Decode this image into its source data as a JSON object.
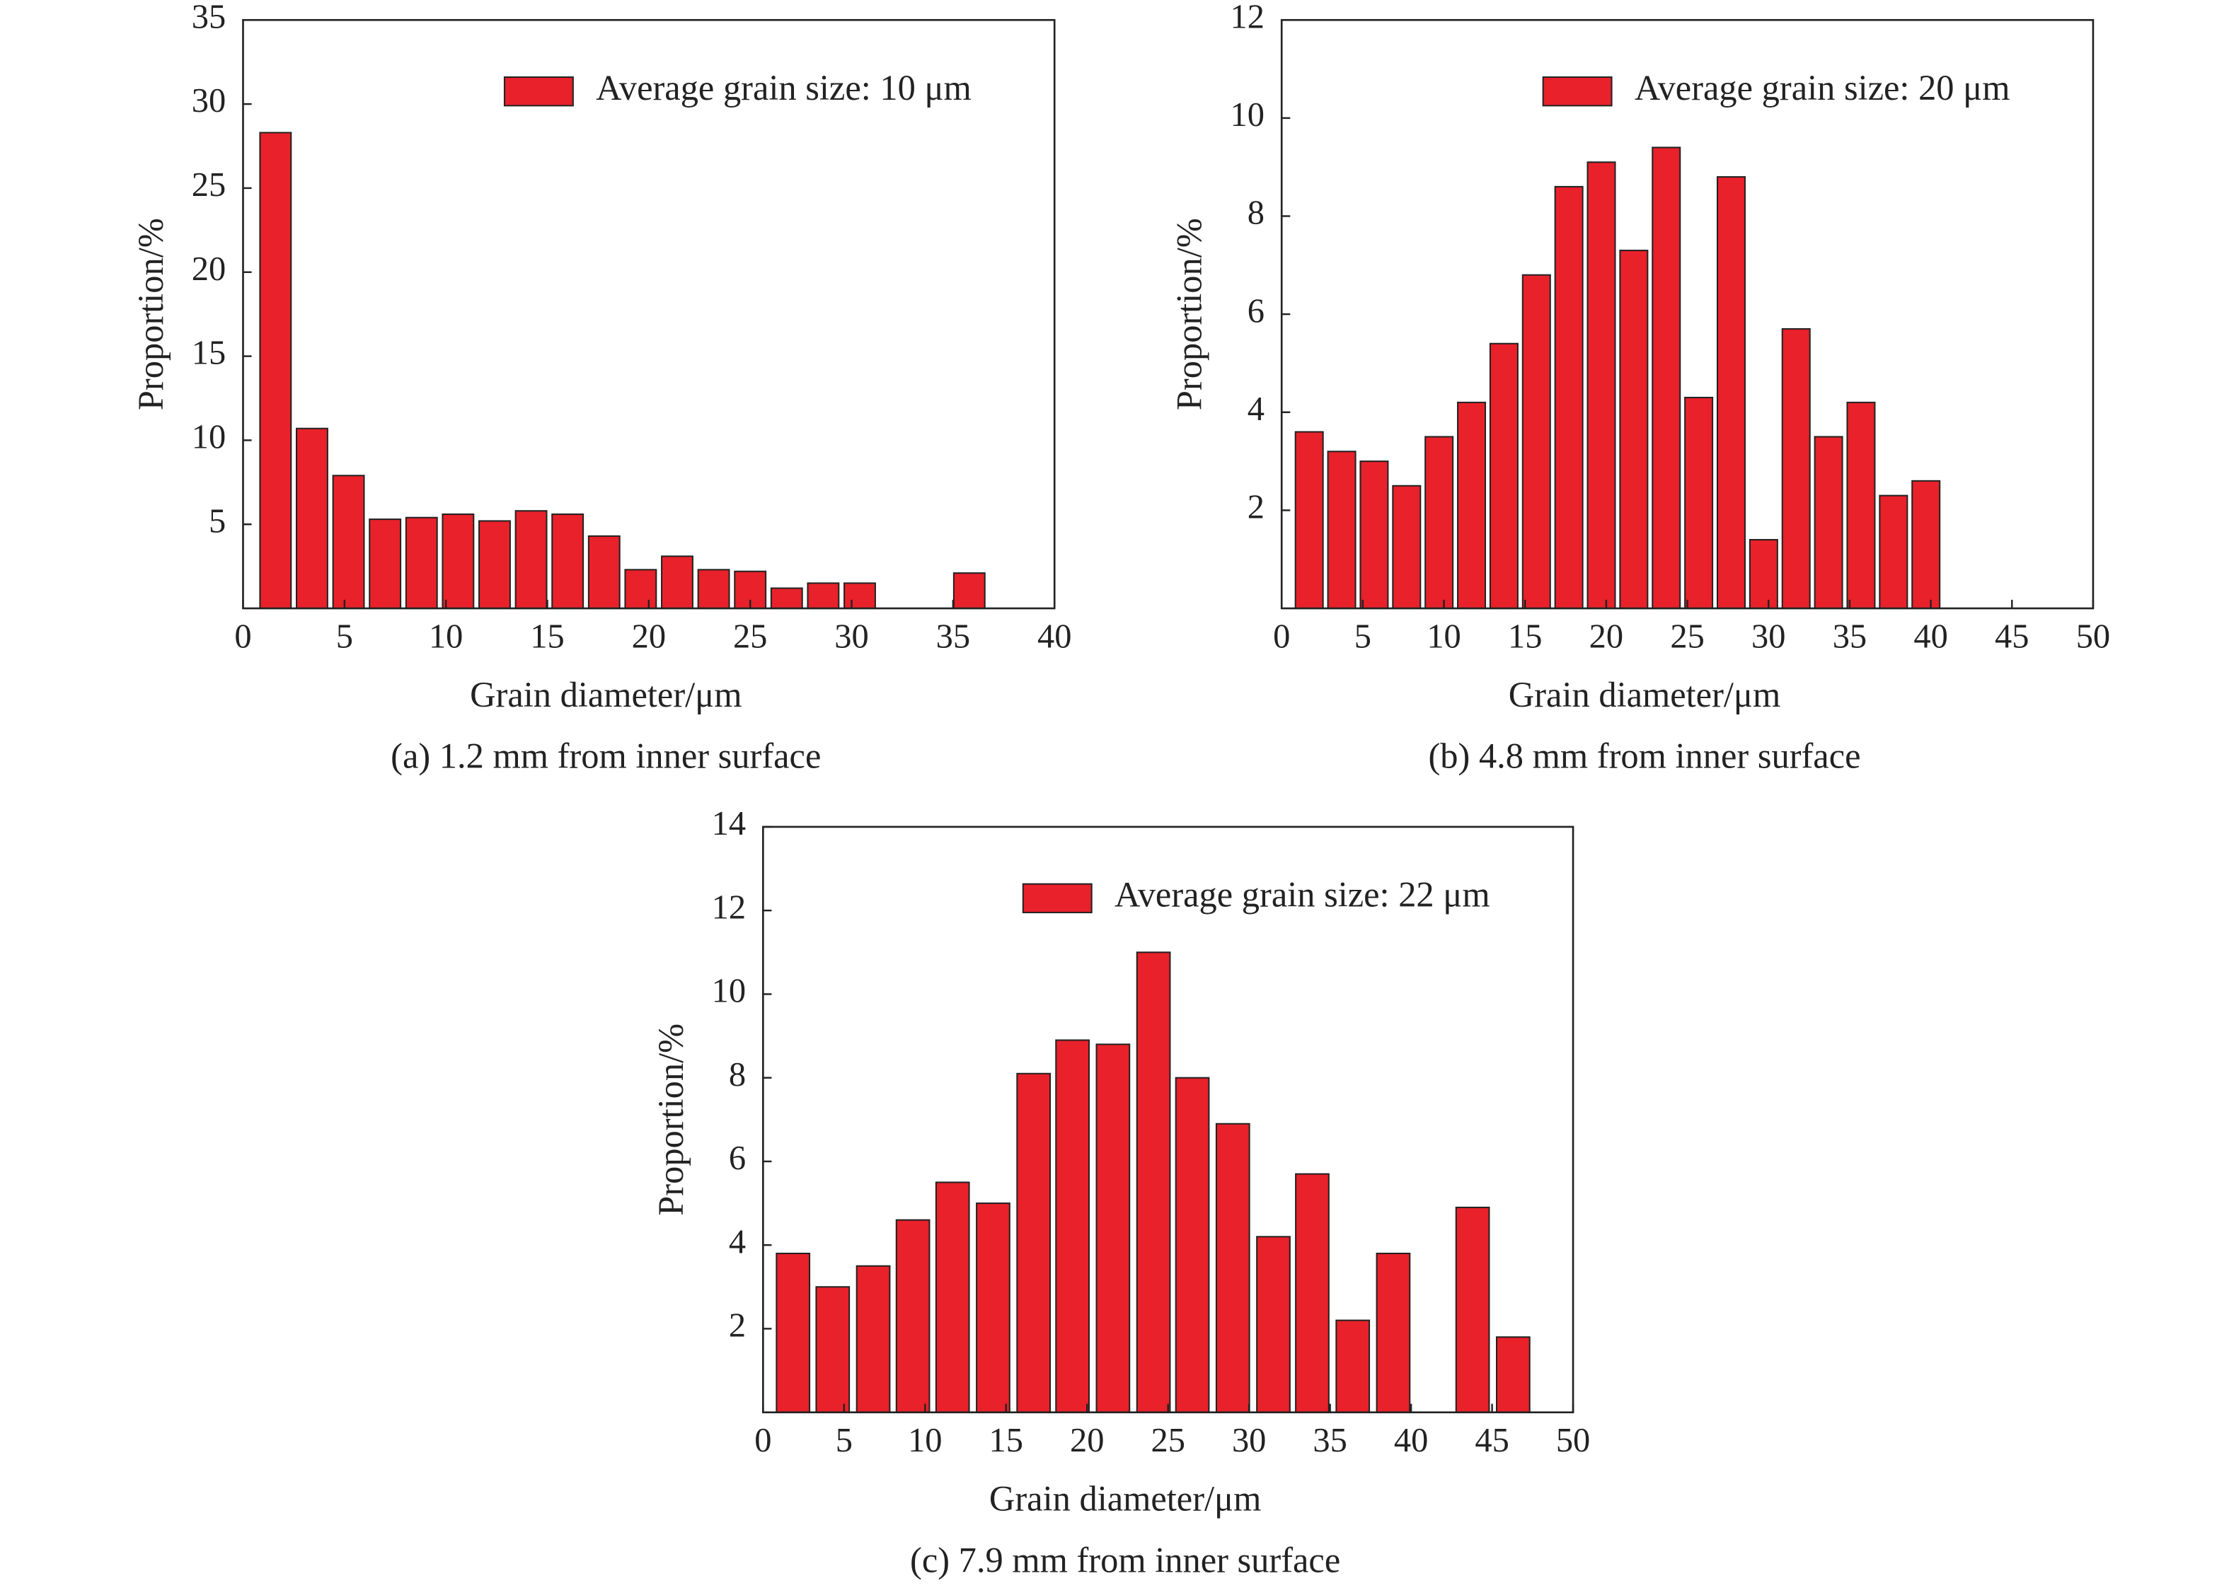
{
  "chart_data": [
    {
      "type": "bar",
      "caption": "(a) 1.2 mm from inner surface",
      "xlabel": "Grain diameter/μm",
      "ylabel": "Proportion/%",
      "series": [
        {
          "name": "Average grain size: 10 μm",
          "color": "#e8212a",
          "x": [
            1.6,
            3.4,
            5.2,
            7.0,
            8.8,
            10.6,
            12.4,
            14.2,
            16.0,
            17.8,
            19.6,
            21.4,
            23.2,
            25.0,
            26.8,
            28.6,
            30.4,
            35.8
          ],
          "values": [
            28.3,
            10.7,
            7.9,
            5.3,
            5.4,
            5.6,
            5.2,
            5.8,
            5.6,
            4.3,
            2.3,
            3.1,
            2.3,
            2.2,
            1.2,
            1.5,
            1.5,
            2.1
          ]
        }
      ],
      "xlim": [
        0,
        40
      ],
      "xticks": [
        0,
        5,
        10,
        15,
        20,
        25,
        30,
        35,
        40
      ],
      "ylim": [
        0,
        35
      ],
      "yticks": [
        5,
        10,
        15,
        20,
        25,
        30,
        35
      ],
      "legend": "upper right"
    },
    {
      "type": "bar",
      "caption": "(b) 4.8 mm from inner surface",
      "xlabel": "Grain diameter/μm",
      "ylabel": "Proportion/%",
      "series": [
        {
          "name": "Average grain size: 20 μm",
          "color": "#e8212a",
          "x": [
            1.7,
            3.7,
            5.7,
            7.7,
            9.7,
            11.7,
            13.7,
            15.7,
            17.7,
            19.7,
            21.7,
            23.7,
            25.7,
            27.7,
            29.7,
            31.7,
            33.7,
            35.7,
            37.7,
            39.7
          ],
          "values": [
            3.6,
            3.2,
            3.0,
            2.5,
            3.5,
            4.2,
            5.4,
            6.8,
            8.6,
            9.1,
            7.3,
            9.4,
            4.3,
            8.8,
            1.4,
            5.7,
            3.5,
            4.2,
            2.3,
            2.6
          ]
        }
      ],
      "xlim": [
        0,
        50
      ],
      "xticks": [
        0,
        5,
        10,
        15,
        20,
        25,
        30,
        35,
        40,
        45,
        50
      ],
      "ylim": [
        0,
        12
      ],
      "yticks": [
        2,
        4,
        6,
        8,
        10,
        12
      ],
      "legend": "upper right"
    },
    {
      "type": "bar",
      "caption": "(c) 7.9 mm from inner surface",
      "xlabel": "Grain diameter/μm",
      "ylabel": "Proportion/%",
      "series": [
        {
          "name": "Average grain size: 22 μm",
          "color": "#e8212a",
          "x": [
            1.85,
            4.3,
            6.8,
            9.25,
            11.7,
            14.2,
            16.7,
            19.1,
            21.6,
            24.1,
            26.5,
            29.0,
            31.5,
            33.9,
            36.4,
            38.9,
            43.8,
            46.3
          ],
          "values": [
            3.8,
            3.0,
            3.5,
            4.6,
            5.5,
            5.0,
            8.1,
            8.9,
            8.8,
            11.0,
            8.0,
            6.9,
            4.2,
            5.7,
            2.2,
            3.8,
            4.9,
            1.8
          ]
        }
      ],
      "xlim": [
        0,
        50
      ],
      "xticks": [
        0,
        5,
        10,
        15,
        20,
        25,
        30,
        35,
        40,
        45,
        50
      ],
      "ylim": [
        0,
        14
      ],
      "yticks": [
        2,
        4,
        6,
        8,
        10,
        12,
        14
      ],
      "legend": "upper right"
    }
  ]
}
